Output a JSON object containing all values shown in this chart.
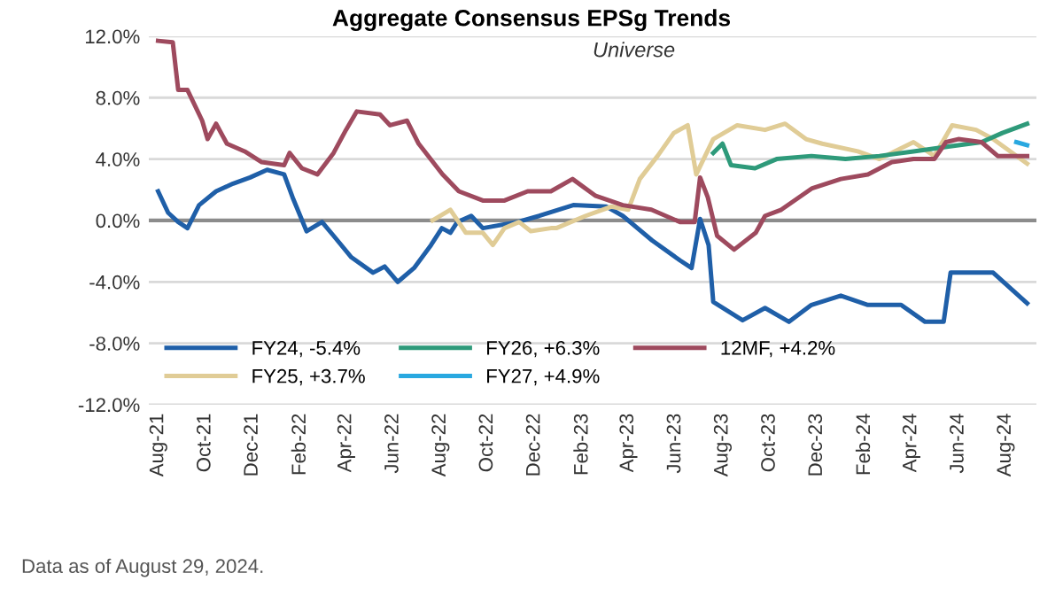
{
  "chart_data": {
    "type": "line",
    "title": "Aggregate Consensus EPSg Trends",
    "subtitle": "Universe",
    "annotations": [
      "Data as of August 29, 2024."
    ],
    "xlim": [
      "2021-07-20",
      "2024-09-10"
    ],
    "xticks": [
      {
        "value": "2021-08-01",
        "label": "Aug-21"
      },
      {
        "value": "2021-10-01",
        "label": "Oct-21"
      },
      {
        "value": "2021-12-01",
        "label": "Dec-21"
      },
      {
        "value": "2022-02-01",
        "label": "Feb-22"
      },
      {
        "value": "2022-04-01",
        "label": "Apr-22"
      },
      {
        "value": "2022-06-01",
        "label": "Jun-22"
      },
      {
        "value": "2022-08-01",
        "label": "Aug-22"
      },
      {
        "value": "2022-10-01",
        "label": "Oct-22"
      },
      {
        "value": "2022-12-01",
        "label": "Dec-22"
      },
      {
        "value": "2023-02-01",
        "label": "Feb-23"
      },
      {
        "value": "2023-04-01",
        "label": "Apr-23"
      },
      {
        "value": "2023-06-01",
        "label": "Jun-23"
      },
      {
        "value": "2023-08-01",
        "label": "Aug-23"
      },
      {
        "value": "2023-10-01",
        "label": "Oct-23"
      },
      {
        "value": "2023-12-01",
        "label": "Dec-23"
      },
      {
        "value": "2024-02-01",
        "label": "Feb-24"
      },
      {
        "value": "2024-04-01",
        "label": "Apr-24"
      },
      {
        "value": "2024-06-01",
        "label": "Jun-24"
      },
      {
        "value": "2024-08-01",
        "label": "Aug-24"
      }
    ],
    "ylim": [
      -12,
      12
    ],
    "yticks": [
      {
        "value": 12,
        "label": "12.0%"
      },
      {
        "value": 8,
        "label": "8.0%"
      },
      {
        "value": 4,
        "label": "4.0%"
      },
      {
        "value": 0,
        "label": "0.0%"
      },
      {
        "value": -4,
        "label": "-4.0%"
      },
      {
        "value": -8,
        "label": "-8.0%"
      },
      {
        "value": -12,
        "label": "-12.0%"
      }
    ],
    "grid": "y",
    "legend": "bottom left",
    "marker": "none",
    "line_style": "solid",
    "ref_lines": [
      {
        "axis": "y",
        "value": 0,
        "color": "#8c8c8c"
      }
    ],
    "series": [
      {
        "name": "FY24, -5.4%",
        "color": "#1f5fa8",
        "x": [
          "2021-08-01",
          "2021-08-14",
          "2021-08-27",
          "2021-09-08",
          "2021-09-23",
          "2021-10-15",
          "2021-11-06",
          "2021-11-28",
          "2021-12-20",
          "2022-01-11",
          "2022-01-22",
          "2022-02-09",
          "2022-03-01",
          "2022-03-16",
          "2022-04-08",
          "2022-05-06",
          "2022-05-21",
          "2022-06-07",
          "2022-06-28",
          "2022-07-20",
          "2022-08-03",
          "2022-08-14",
          "2022-08-23",
          "2022-09-10",
          "2022-09-25",
          "2022-11-09",
          "2022-12-07",
          "2023-01-20",
          "2023-03-04",
          "2023-03-25",
          "2023-05-02",
          "2023-06-07",
          "2023-06-22",
          "2023-07-03",
          "2023-07-14",
          "2023-07-20",
          "2023-08-27",
          "2023-09-25",
          "2023-10-26",
          "2023-11-24",
          "2024-01-01",
          "2024-02-05",
          "2024-03-19",
          "2024-04-19",
          "2024-05-13",
          "2024-05-22",
          "2024-07-16",
          "2024-08-29"
        ],
        "values": [
          1.9,
          0.5,
          -0.1,
          -0.5,
          1.0,
          1.9,
          2.4,
          2.8,
          3.3,
          3.0,
          1.5,
          -0.7,
          -0.1,
          -1.0,
          -2.4,
          -3.4,
          -3.0,
          -4.0,
          -3.1,
          -1.6,
          -0.5,
          -0.8,
          -0.1,
          0.3,
          -0.5,
          -0.1,
          0.3,
          1.0,
          0.9,
          0.3,
          -1.3,
          -2.6,
          -3.1,
          0.1,
          -1.6,
          -5.3,
          -6.5,
          -5.7,
          -6.6,
          -5.5,
          -4.9,
          -5.5,
          -5.5,
          -6.6,
          -6.6,
          -3.4,
          -3.4,
          -5.4
        ]
      },
      {
        "name": "FY25, +3.7%",
        "color": "#e0cc96",
        "x": [
          "2022-07-22",
          "2022-08-14",
          "2022-09-03",
          "2022-09-25",
          "2022-10-08",
          "2022-10-23",
          "2022-11-11",
          "2022-11-26",
          "2022-12-22",
          "2022-12-29",
          "2023-02-05",
          "2023-03-10",
          "2023-04-01",
          "2023-04-16",
          "2023-05-09",
          "2023-05-30",
          "2023-06-17",
          "2023-06-28",
          "2023-07-20",
          "2023-08-20",
          "2023-09-25",
          "2023-10-21",
          "2023-11-17",
          "2023-12-08",
          "2024-01-23",
          "2024-02-20",
          "2024-04-04",
          "2024-05-01",
          "2024-05-24",
          "2024-06-24",
          "2024-07-16",
          "2024-08-29"
        ],
        "values": [
          0.0,
          0.7,
          -0.8,
          -0.8,
          -1.6,
          -0.5,
          -0.1,
          -0.7,
          -0.5,
          -0.5,
          0.3,
          0.9,
          0.7,
          2.7,
          4.2,
          5.7,
          6.2,
          3.0,
          5.3,
          6.2,
          5.9,
          6.3,
          5.3,
          5.0,
          4.5,
          4.0,
          5.1,
          4.2,
          6.2,
          5.9,
          5.3,
          3.7
        ]
      },
      {
        "name": "FY26, +6.3%",
        "color": "#2e9a7a",
        "x": [
          "2023-07-20",
          "2023-08-01",
          "2023-08-12",
          "2023-09-12",
          "2023-10-10",
          "2023-11-24",
          "2024-01-07",
          "2024-02-20",
          "2024-04-04",
          "2024-05-17",
          "2024-07-01",
          "2024-07-28",
          "2024-08-29"
        ],
        "values": [
          4.4,
          5.0,
          3.6,
          3.4,
          4.0,
          4.2,
          4.0,
          4.2,
          4.5,
          4.8,
          5.1,
          5.7,
          6.3
        ]
      },
      {
        "name": "FY27, +4.9%",
        "color": "#29a8e0",
        "x": [
          "2024-08-15",
          "2024-08-29"
        ],
        "values": [
          5.1,
          4.9
        ]
      },
      {
        "name": "12MF, +4.2%",
        "color": "#9e4a5e",
        "x": [
          "2021-08-01",
          "2021-08-20",
          "2021-08-27",
          "2021-09-08",
          "2021-09-27",
          "2021-10-04",
          "2021-10-15",
          "2021-10-29",
          "2021-11-21",
          "2021-12-13",
          "2022-01-11",
          "2022-01-18",
          "2022-02-03",
          "2022-02-23",
          "2022-03-16",
          "2022-04-01",
          "2022-04-15",
          "2022-05-15",
          "2022-05-28",
          "2022-06-19",
          "2022-07-04",
          "2022-08-04",
          "2022-08-25",
          "2022-09-25",
          "2022-10-23",
          "2022-11-22",
          "2022-12-22",
          "2023-01-19",
          "2023-02-18",
          "2023-03-25",
          "2023-05-01",
          "2023-06-07",
          "2023-06-26",
          "2023-07-03",
          "2023-07-13",
          "2023-07-25",
          "2023-08-16",
          "2023-09-13",
          "2023-09-25",
          "2023-10-16",
          "2023-11-25",
          "2024-01-01",
          "2024-02-05",
          "2024-03-07",
          "2024-04-04",
          "2024-05-01",
          "2024-05-16",
          "2024-06-01",
          "2024-07-01",
          "2024-07-22",
          "2024-08-29"
        ],
        "values": [
          11.7,
          11.6,
          8.5,
          8.5,
          6.5,
          5.3,
          6.3,
          5.0,
          4.5,
          3.8,
          3.6,
          4.4,
          3.4,
          3.0,
          4.4,
          5.9,
          7.1,
          6.9,
          6.2,
          6.5,
          5.0,
          3.0,
          1.9,
          1.3,
          1.3,
          1.9,
          1.9,
          2.7,
          1.6,
          1.0,
          0.7,
          -0.1,
          -0.1,
          2.8,
          1.5,
          -1.0,
          -1.9,
          -0.8,
          0.3,
          0.7,
          2.1,
          2.7,
          3.0,
          3.8,
          4.0,
          4.0,
          5.1,
          5.3,
          5.1,
          4.2,
          4.2
        ]
      }
    ]
  }
}
